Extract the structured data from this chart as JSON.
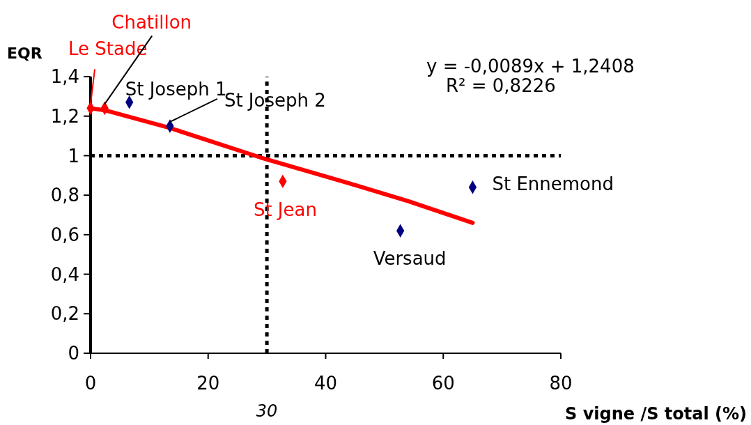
{
  "chart_data": {
    "type": "scatter",
    "xlabel": "S vigne /S total (%)",
    "ylabel": "EQR",
    "xlim": [
      0,
      80
    ],
    "xticks": [
      0,
      20,
      40,
      60,
      80
    ],
    "ylim": [
      0,
      1.4
    ],
    "yticks": [
      {
        "value": 0,
        "label": "0"
      },
      {
        "value": 0.2,
        "label": "0,2"
      },
      {
        "value": 0.4,
        "label": "0,4"
      },
      {
        "value": 0.6,
        "label": "0,6"
      },
      {
        "value": 0.8,
        "label": "0,8"
      },
      {
        "value": 1,
        "label": "1"
      },
      {
        "value": 1.2,
        "label": "1,2"
      },
      {
        "value": 1.4,
        "label": "1,4"
      }
    ],
    "grid": false,
    "marker": "diamond",
    "series": [
      {
        "type": "line",
        "marker": "none",
        "color": "#ff0000",
        "x": [
          0,
          2.4,
          13.5,
          29,
          44,
          54,
          65
        ],
        "values": [
          1.24,
          1.23,
          1.14,
          0.99,
          0.86,
          0.77,
          0.66
        ]
      },
      {
        "color": "#ff0000",
        "x": [
          0,
          2.4,
          32.7
        ],
        "values": [
          1.24,
          1.24,
          0.87
        ]
      },
      {
        "color": "#000080",
        "x": [
          6.6,
          13.5,
          52.7,
          65
        ],
        "values": [
          1.27,
          1.15,
          0.62,
          0.84
        ]
      }
    ],
    "ref_lines": [
      {
        "axis": "y",
        "value": 1,
        "line_style": "dotted",
        "color": "#000000"
      },
      {
        "axis": "x",
        "value": 30,
        "label": "30",
        "line_style": "dotted",
        "color": "#000000"
      }
    ],
    "annotations": [
      {
        "text": "Le Stade",
        "x": 0,
        "y": 1.24
      },
      {
        "text": "Chatillon",
        "x": 2.4,
        "y": 1.24
      },
      {
        "text": "St Joseph 1",
        "x": 6.6,
        "y": 1.27
      },
      {
        "text": "St Joseph 2",
        "x": 13.5,
        "y": 1.15
      },
      {
        "text": "St Jean",
        "x": 32.7,
        "y": 0.87
      },
      {
        "text": "Versaud",
        "x": 52.7,
        "y": 0.62
      },
      {
        "text": "St Ennemond",
        "x": 65,
        "y": 0.84
      },
      "y = -0,0089x + 1,2408",
      "R² = 0,8226"
    ]
  }
}
